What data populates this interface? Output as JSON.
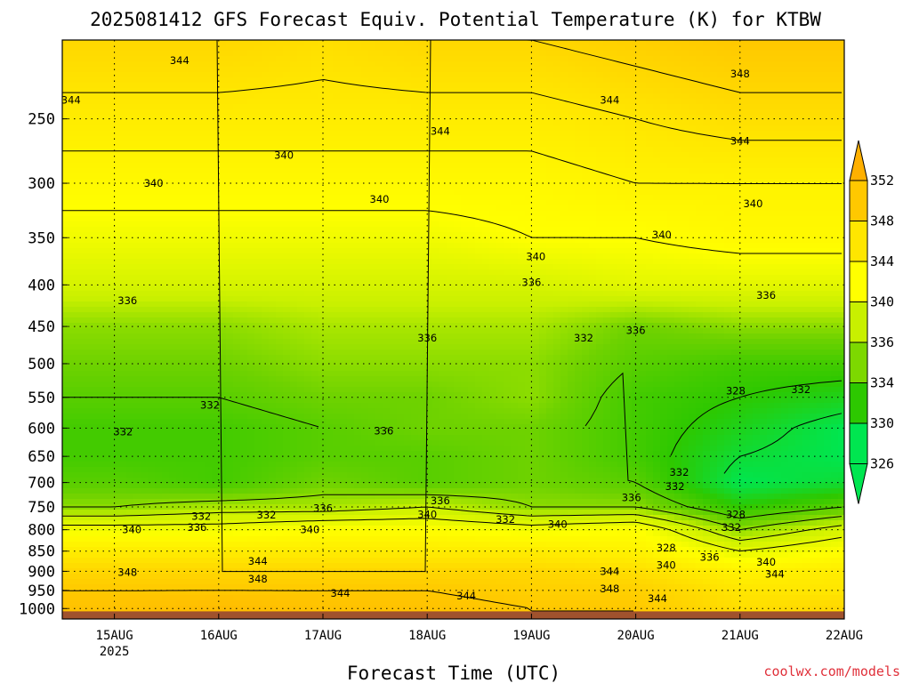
{
  "header": {
    "title": "2025081412 GFS Forecast Equiv. Potential Temperature (K) for KTBW"
  },
  "footer": {
    "credit": "coolwx.com/models",
    "credit_color": "#e0303a"
  },
  "chart_data": {
    "type": "heatmap",
    "title": "2025081412 GFS Forecast Equiv. Potential Temperature (K) for KTBW",
    "xlabel": "Forecast Time (UTC)",
    "ylabel": "",
    "x_axis": {
      "start": "2025-08-14T12:00Z",
      "end": "2025-08-22T00:00Z",
      "ticks": [
        {
          "label": "15AUG",
          "sublabel": "2025",
          "time": "2025-08-15T00:00Z"
        },
        {
          "label": "16AUG",
          "sublabel": "",
          "time": "2025-08-16T00:00Z"
        },
        {
          "label": "17AUG",
          "sublabel": "",
          "time": "2025-08-17T00:00Z"
        },
        {
          "label": "18AUG",
          "sublabel": "",
          "time": "2025-08-18T00:00Z"
        },
        {
          "label": "19AUG",
          "sublabel": "",
          "time": "2025-08-19T00:00Z"
        },
        {
          "label": "20AUG",
          "sublabel": "",
          "time": "2025-08-20T00:00Z"
        },
        {
          "label": "21AUG",
          "sublabel": "",
          "time": "2025-08-21T00:00Z"
        },
        {
          "label": "22AUG",
          "sublabel": "",
          "time": "2025-08-22T00:00Z"
        }
      ]
    },
    "y_axis": {
      "scale": "log-pressure",
      "reversed": true,
      "range_hPa": [
        1030,
        200
      ],
      "ticks": [
        250,
        300,
        350,
        400,
        450,
        500,
        550,
        600,
        650,
        700,
        750,
        800,
        850,
        900,
        950,
        1000
      ]
    },
    "colorbar": {
      "labels": [
        352,
        348,
        344,
        340,
        336,
        334,
        330,
        326
      ],
      "bands": [
        {
          "label": "352",
          "color": "#ffb000"
        },
        {
          "label": "348",
          "color": "#ffc800"
        },
        {
          "label": "344",
          "color": "#ffe600"
        },
        {
          "label": "340",
          "color": "#ffff00"
        },
        {
          "label": "336",
          "color": "#c8f000"
        },
        {
          "label": "334",
          "color": "#7dd800"
        },
        {
          "label": "330",
          "color": "#2dc800"
        },
        {
          "label": "326",
          "color": "#00e650"
        }
      ],
      "extend": "both"
    },
    "grid": true,
    "ground_color": "#a0522d",
    "profile": {
      "levels_hPa": [
        200,
        250,
        300,
        350,
        400,
        450,
        500,
        550,
        600,
        650,
        700,
        750,
        800,
        850,
        900,
        950,
        1000
      ],
      "times": [
        "15AUG",
        "16AUG",
        "17AUG",
        "18AUG",
        "19AUG",
        "20AUG",
        "21AUG",
        "22AUG"
      ],
      "values": [
        [
          346,
          346,
          345,
          346,
          346,
          347,
          348,
          348
        ],
        [
          343,
          343,
          343,
          343,
          343,
          344,
          345,
          345
        ],
        [
          341,
          341,
          341,
          341,
          341,
          342,
          342,
          342
        ],
        [
          339,
          339,
          339,
          339,
          340,
          340,
          341,
          341
        ],
        [
          337,
          337,
          337,
          337,
          337,
          338,
          338,
          338
        ],
        [
          334,
          334,
          335,
          335,
          335,
          333,
          334,
          334
        ],
        [
          333,
          333,
          334,
          334,
          334,
          332,
          331,
          331
        ],
        [
          332,
          332,
          333,
          333,
          334,
          331,
          330,
          329
        ],
        [
          331,
          331,
          332,
          333,
          333,
          331,
          329,
          327
        ],
        [
          331,
          331,
          332,
          332,
          333,
          331,
          328,
          327
        ],
        [
          332,
          331,
          333,
          332,
          333,
          332,
          327,
          328
        ],
        [
          334,
          335,
          335,
          336,
          334,
          334,
          330,
          332
        ],
        [
          339,
          339,
          340,
          340,
          339,
          340,
          334,
          337
        ],
        [
          343,
          343,
          343,
          343,
          343,
          342,
          338,
          340
        ],
        [
          346,
          346,
          346,
          346,
          346,
          345,
          342,
          343
        ],
        [
          348,
          348,
          348,
          348,
          347,
          347,
          344,
          344
        ],
        [
          349,
          350,
          349,
          349,
          348,
          348,
          345,
          346
        ]
      ]
    },
    "contour_labels": [
      {
        "text": "344",
        "time": "2025-08-15T15:00Z",
        "p": 212
      },
      {
        "text": "348",
        "time": "2025-08-21T00:00Z",
        "p": 220
      },
      {
        "text": "344",
        "time": "2025-08-14T14:00Z",
        "p": 237
      },
      {
        "text": "344",
        "time": "2025-08-19T18:00Z",
        "p": 237
      },
      {
        "text": "344",
        "time": "2025-08-18T03:00Z",
        "p": 259
      },
      {
        "text": "344",
        "time": "2025-08-21T00:00Z",
        "p": 266
      },
      {
        "text": "340",
        "time": "2025-08-16T15:00Z",
        "p": 277
      },
      {
        "text": "340",
        "time": "2025-08-15T09:00Z",
        "p": 300
      },
      {
        "text": "340",
        "time": "2025-08-17T13:00Z",
        "p": 314
      },
      {
        "text": "340",
        "time": "2025-08-21T03:00Z",
        "p": 318
      },
      {
        "text": "340",
        "time": "2025-08-20T06:00Z",
        "p": 347
      },
      {
        "text": "340",
        "time": "2025-08-19T01:00Z",
        "p": 369
      },
      {
        "text": "336",
        "time": "2025-08-19T00:00Z",
        "p": 397
      },
      {
        "text": "336",
        "time": "2025-08-15T03:00Z",
        "p": 418
      },
      {
        "text": "336",
        "time": "2025-08-21T06:00Z",
        "p": 412
      },
      {
        "text": "336",
        "time": "2025-08-18T00:00Z",
        "p": 465
      },
      {
        "text": "332",
        "time": "2025-08-19T12:00Z",
        "p": 465
      },
      {
        "text": "336",
        "time": "2025-08-20T00:00Z",
        "p": 455
      },
      {
        "text": "332",
        "time": "2025-08-15T22:00Z",
        "p": 562
      },
      {
        "text": "328",
        "time": "2025-08-20T23:00Z",
        "p": 540
      },
      {
        "text": "332",
        "time": "2025-08-21T14:00Z",
        "p": 538
      },
      {
        "text": "332",
        "time": "2025-08-15T02:00Z",
        "p": 606
      },
      {
        "text": "336",
        "time": "2025-08-17T14:00Z",
        "p": 605
      },
      {
        "text": "332",
        "time": "2025-08-20T10:00Z",
        "p": 680
      },
      {
        "text": "332",
        "time": "2025-08-20T09:00Z",
        "p": 708
      },
      {
        "text": "336",
        "time": "2025-08-18T03:00Z",
        "p": 737
      },
      {
        "text": "336",
        "time": "2025-08-19T23:00Z",
        "p": 730
      },
      {
        "text": "336",
        "time": "2025-08-17T00:00Z",
        "p": 753
      },
      {
        "text": "332",
        "time": "2025-08-15T20:00Z",
        "p": 770
      },
      {
        "text": "332",
        "time": "2025-08-16T11:00Z",
        "p": 767
      },
      {
        "text": "340",
        "time": "2025-08-18T00:00Z",
        "p": 766
      },
      {
        "text": "332",
        "time": "2025-08-18T18:00Z",
        "p": 777
      },
      {
        "text": "328",
        "time": "2025-08-20T23:00Z",
        "p": 766
      },
      {
        "text": "336",
        "time": "2025-08-15T19:00Z",
        "p": 795
      },
      {
        "text": "340",
        "time": "2025-08-15T04:00Z",
        "p": 800
      },
      {
        "text": "340",
        "time": "2025-08-16T21:00Z",
        "p": 800
      },
      {
        "text": "340",
        "time": "2025-08-19T06:00Z",
        "p": 788
      },
      {
        "text": "332",
        "time": "2025-08-20T22:00Z",
        "p": 795
      },
      {
        "text": "328",
        "time": "2025-08-20T07:00Z",
        "p": 842
      },
      {
        "text": "336",
        "time": "2025-08-20T17:00Z",
        "p": 865
      },
      {
        "text": "344",
        "time": "2025-08-16T09:00Z",
        "p": 875
      },
      {
        "text": "340",
        "time": "2025-08-21T06:00Z",
        "p": 877
      },
      {
        "text": "340",
        "time": "2025-08-20T07:00Z",
        "p": 885
      },
      {
        "text": "348",
        "time": "2025-08-15T03:00Z",
        "p": 903
      },
      {
        "text": "344",
        "time": "2025-08-19T18:00Z",
        "p": 900
      },
      {
        "text": "344",
        "time": "2025-08-21T08:00Z",
        "p": 907
      },
      {
        "text": "348",
        "time": "2025-08-16T09:00Z",
        "p": 920
      },
      {
        "text": "348",
        "time": "2025-08-19T18:00Z",
        "p": 945
      },
      {
        "text": "344",
        "time": "2025-08-17T04:00Z",
        "p": 958
      },
      {
        "text": "344",
        "time": "2025-08-18T09:00Z",
        "p": 965
      },
      {
        "text": "344",
        "time": "2025-08-20T05:00Z",
        "p": 972
      }
    ]
  }
}
